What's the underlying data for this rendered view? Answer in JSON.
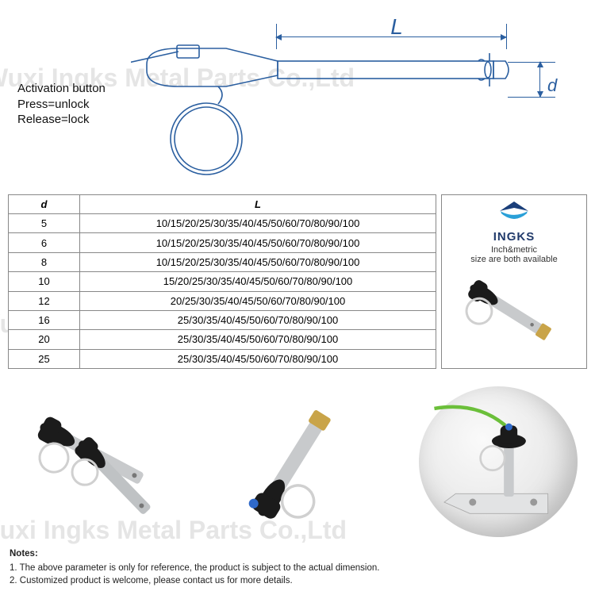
{
  "watermark_text": "Wuxi Ingks Metal Parts Co.,Ltd",
  "diagram": {
    "dim_L_label": "L",
    "dim_d_label": "d",
    "annotation_lines": [
      "Activation button",
      "Press=unlock",
      "Release=lock"
    ],
    "stroke_color": "#2b5fa0",
    "stroke_width": 1.6
  },
  "table": {
    "header_d": "d",
    "header_L": "L",
    "rows": [
      {
        "d": "5",
        "L": "10/15/20/25/30/35/40/45/50/60/70/80/90/100"
      },
      {
        "d": "6",
        "L": "10/15/20/25/30/35/40/45/50/60/70/80/90/100"
      },
      {
        "d": "8",
        "L": "10/15/20/25/30/35/40/45/50/60/70/80/90/100"
      },
      {
        "d": "10",
        "L": "15/20/25/30/35/40/45/50/60/70/80/90/100"
      },
      {
        "d": "12",
        "L": "20/25/30/35/40/45/50/60/70/80/90/100"
      },
      {
        "d": "16",
        "L": "25/30/35/40/45/50/60/70/80/90/100"
      },
      {
        "d": "20",
        "L": "25/30/35/40/45/50/60/70/80/90/100"
      },
      {
        "d": "25",
        "L": "25/30/35/40/45/50/60/70/80/90/100"
      }
    ],
    "border_color": "#888888",
    "font_size": 13
  },
  "logo": {
    "name": "INGKS",
    "subtitle": "Inch&metric\nsize are both available",
    "colors": {
      "top": "#1b3f7a",
      "bottom": "#2aa0d8"
    }
  },
  "product_render": {
    "body_color": "#c8cacc",
    "handle_color": "#1b1b1b",
    "brass_color": "#c9a449",
    "ring_color": "#d0d0d0",
    "cable_color": "#6bbf3a",
    "blue_button": "#2f69c9"
  },
  "notes": {
    "heading": "Notes:",
    "line1": "1. The above parameter is only for reference, the product is subject to the actual dimension.",
    "line2": "2. Customized product is welcome, please contact us for more details."
  }
}
